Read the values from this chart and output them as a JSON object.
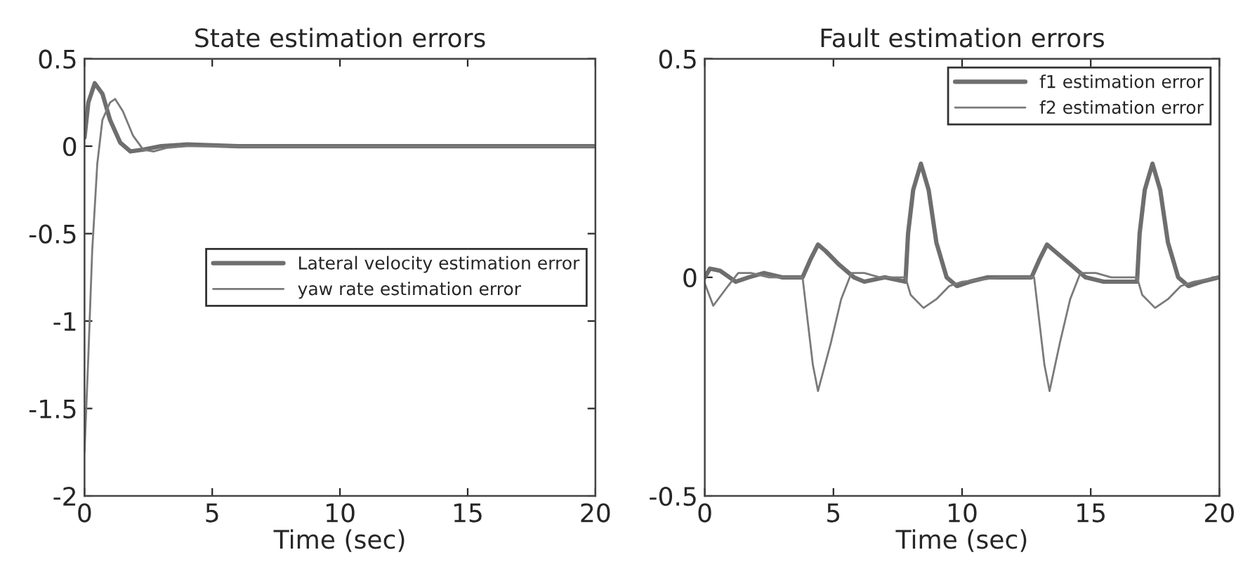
{
  "chart_data": [
    {
      "type": "line",
      "title": "State estimation errors",
      "xlabel": "Time (sec)",
      "xlim": [
        0,
        20
      ],
      "xticks": [
        0,
        5,
        10,
        15,
        20
      ],
      "ylim": [
        -2,
        0.5
      ],
      "yticks": [
        -2,
        -1.5,
        -1,
        -0.5,
        0,
        0.5
      ],
      "grid": false,
      "legend": "right",
      "line_style": "solid",
      "marker": "none",
      "series": [
        {
          "name": "Lateral velocity estimation error",
          "color": "#6e6e6e",
          "x": [
            0,
            0.15,
            0.4,
            0.7,
            1.0,
            1.4,
            1.8,
            2.3,
            3,
            4,
            6,
            10,
            15,
            20
          ],
          "values": [
            0.05,
            0.25,
            0.36,
            0.3,
            0.15,
            0.02,
            -0.03,
            -0.02,
            0.0,
            0.01,
            0,
            0,
            0,
            0
          ]
        },
        {
          "name": "yaw rate estimation error",
          "color": "#7a7a7a",
          "x": [
            0,
            0.15,
            0.3,
            0.5,
            0.7,
            1.0,
            1.2,
            1.5,
            1.9,
            2.3,
            2.7,
            3.2,
            4,
            6,
            10,
            15,
            20
          ],
          "values": [
            -1.75,
            -1.2,
            -0.6,
            -0.1,
            0.15,
            0.25,
            0.27,
            0.2,
            0.06,
            -0.02,
            -0.03,
            -0.01,
            0.0,
            0,
            0,
            0,
            0
          ]
        }
      ]
    },
    {
      "type": "line",
      "title": "Fault estimation errors",
      "xlabel": "Time (sec)",
      "xlim": [
        0,
        20
      ],
      "xticks": [
        0,
        5,
        10,
        15,
        20
      ],
      "ylim": [
        -0.5,
        0.5
      ],
      "yticks": [
        -0.5,
        0,
        0.5
      ],
      "grid": false,
      "legend": "top right",
      "line_style": "solid",
      "marker": "none",
      "series": [
        {
          "name": "f1 estimation error",
          "color": "#6e6e6e",
          "x": [
            0,
            0.2,
            0.6,
            1.2,
            1.7,
            2.3,
            3,
            3.8,
            4.1,
            4.4,
            4.7,
            5.2,
            5.8,
            6.2,
            7,
            7.8,
            7.9,
            8.1,
            8.4,
            8.7,
            9.0,
            9.4,
            9.8,
            10.3,
            11,
            12.7,
            13.0,
            13.3,
            13.6,
            14.2,
            14.8,
            15.5,
            16.8,
            16.9,
            17.1,
            17.4,
            17.7,
            18,
            18.4,
            18.8,
            19.3,
            20
          ],
          "values": [
            0.0,
            0.02,
            0.015,
            -0.01,
            0.0,
            0.01,
            0,
            0,
            0.04,
            0.075,
            0.06,
            0.03,
            0.0,
            -0.01,
            0,
            -0.01,
            0.1,
            0.2,
            0.26,
            0.2,
            0.08,
            0.0,
            -0.02,
            -0.01,
            0,
            0,
            0.04,
            0.075,
            0.06,
            0.03,
            0,
            -0.01,
            -0.01,
            0.1,
            0.2,
            0.26,
            0.2,
            0.08,
            0,
            -0.02,
            -0.01,
            0
          ]
        },
        {
          "name": "f2 estimation error",
          "color": "#7a7a7a",
          "x": [
            0,
            0.33,
            0.9,
            1.3,
            1.8,
            2.5,
            3.8,
            4.0,
            4.2,
            4.4,
            4.9,
            5.3,
            5.7,
            6.2,
            6.8,
            7.8,
            8.0,
            8.5,
            9,
            9.5,
            10,
            11.5,
            12.8,
            13.0,
            13.2,
            13.4,
            13.8,
            14.2,
            14.6,
            15.2,
            15.8,
            16.8,
            17.0,
            17.5,
            18,
            18.5,
            19,
            20
          ],
          "values": [
            -0.014,
            -0.065,
            -0.02,
            0.01,
            0.01,
            0,
            0,
            -0.1,
            -0.2,
            -0.26,
            -0.15,
            -0.05,
            0.01,
            0.01,
            0,
            0,
            -0.04,
            -0.07,
            -0.05,
            -0.02,
            -0.01,
            0,
            0,
            -0.1,
            -0.2,
            -0.26,
            -0.15,
            -0.05,
            0.01,
            0.01,
            0,
            0,
            -0.04,
            -0.07,
            -0.05,
            -0.02,
            -0.01,
            0
          ]
        }
      ]
    }
  ]
}
